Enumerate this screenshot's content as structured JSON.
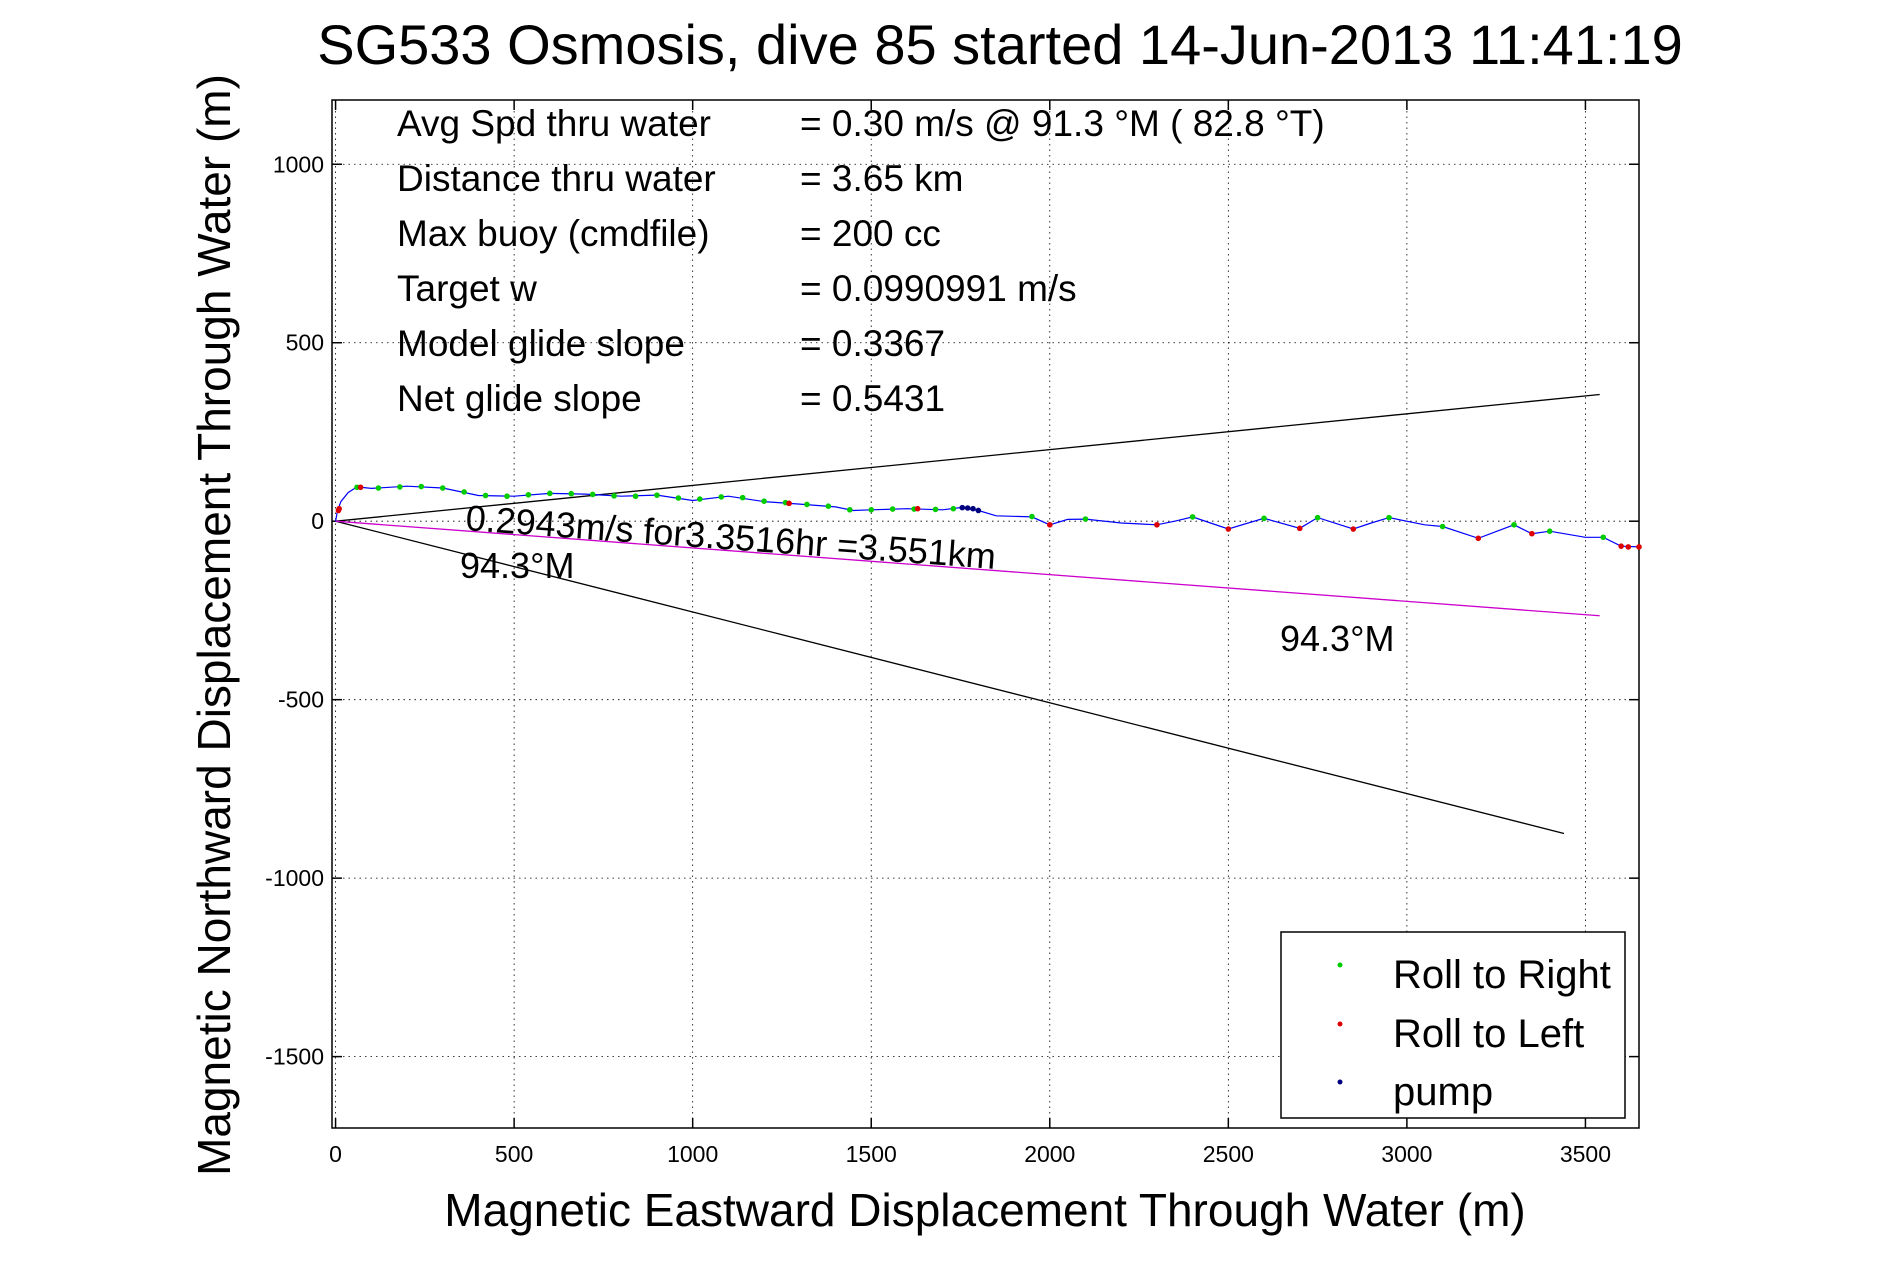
{
  "chart_data": {
    "type": "scatter",
    "title": "SG533 Osmosis, dive 85 started 14-Jun-2013 11:41:19",
    "xlabel": "Magnetic Eastward Displacement Through Water (m)",
    "ylabel": "Magnetic Northward Displacement Through Water (m)",
    "xlim": [
      -10,
      3650
    ],
    "ylim": [
      -1700,
      1180
    ],
    "xticks": [
      0,
      500,
      1000,
      1500,
      2000,
      2500,
      3000,
      3500
    ],
    "yticks": [
      -1500,
      -1000,
      -500,
      0,
      500,
      1000
    ],
    "grid": true,
    "legend_position": "bottom-right",
    "info_lines": [
      {
        "label": "Avg Spd thru water",
        "value": "=  0.30 m/s @  91.3 °M ( 82.8 °T)"
      },
      {
        "label": "Distance thru water",
        "value": "=  3.65 km"
      },
      {
        "label": "Max buoy (cmdfile)",
        "value": "= 200 cc"
      },
      {
        "label": "Target w",
        "value": "= 0.0990991 m/s"
      },
      {
        "label": "Model glide slope",
        "value": "= 0.3367"
      },
      {
        "label": "Net glide slope",
        "value": "= 0.5431"
      }
    ],
    "annotations": {
      "speed_note": "0.2943m/s for3.3516hr =3.551km",
      "heading_near": "94.3°M",
      "heading_far": "94.3°M"
    },
    "legend": [
      {
        "label": "Roll to Right",
        "color": "#00cc00"
      },
      {
        "label": "Roll to Left",
        "color": "#dd0000"
      },
      {
        "label": "pump",
        "color": "#000080"
      }
    ],
    "reference_lines": [
      {
        "kind": "cone-upper",
        "color": "#000000",
        "x": [
          0,
          3540
        ],
        "y": [
          0,
          355
        ]
      },
      {
        "kind": "cone-lower",
        "color": "#000000",
        "x": [
          0,
          3440
        ],
        "y": [
          0,
          -875
        ]
      },
      {
        "kind": "heading",
        "color": "#cc00cc",
        "x": [
          0,
          3540
        ],
        "y": [
          0,
          -265
        ]
      }
    ],
    "track": {
      "color": "#0000ff",
      "points": [
        [
          0,
          0
        ],
        [
          5,
          28
        ],
        [
          15,
          55
        ],
        [
          35,
          80
        ],
        [
          60,
          96
        ],
        [
          100,
          92
        ],
        [
          200,
          98
        ],
        [
          300,
          93
        ],
        [
          400,
          72
        ],
        [
          500,
          70
        ],
        [
          600,
          78
        ],
        [
          700,
          76
        ],
        [
          800,
          70
        ],
        [
          900,
          73
        ],
        [
          1000,
          58
        ],
        [
          1100,
          70
        ],
        [
          1200,
          55
        ],
        [
          1300,
          48
        ],
        [
          1400,
          40
        ],
        [
          1450,
          30
        ],
        [
          1500,
          32
        ],
        [
          1600,
          35
        ],
        [
          1700,
          32
        ],
        [
          1750,
          38
        ],
        [
          1800,
          30
        ],
        [
          1850,
          15
        ],
        [
          1950,
          12
        ],
        [
          2000,
          -10
        ],
        [
          2050,
          5
        ],
        [
          2100,
          6
        ],
        [
          2200,
          -5
        ],
        [
          2300,
          -10
        ],
        [
          2350,
          0
        ],
        [
          2400,
          12
        ],
        [
          2450,
          -5
        ],
        [
          2500,
          -22
        ],
        [
          2600,
          8
        ],
        [
          2700,
          -20
        ],
        [
          2750,
          10
        ],
        [
          2850,
          -22
        ],
        [
          2900,
          -5
        ],
        [
          2950,
          10
        ],
        [
          3050,
          -10
        ],
        [
          3100,
          -15
        ],
        [
          3200,
          -48
        ],
        [
          3300,
          -10
        ],
        [
          3350,
          -35
        ],
        [
          3400,
          -28
        ],
        [
          3500,
          -45
        ],
        [
          3550,
          -45
        ],
        [
          3600,
          -70
        ],
        [
          3650,
          -72
        ]
      ]
    },
    "roll_right_points": [
      [
        60,
        95
      ],
      [
        120,
        93
      ],
      [
        180,
        96
      ],
      [
        240,
        97
      ],
      [
        300,
        93
      ],
      [
        360,
        82
      ],
      [
        420,
        72
      ],
      [
        480,
        70
      ],
      [
        540,
        74
      ],
      [
        600,
        78
      ],
      [
        660,
        77
      ],
      [
        720,
        75
      ],
      [
        780,
        71
      ],
      [
        840,
        70
      ],
      [
        900,
        73
      ],
      [
        960,
        65
      ],
      [
        1020,
        62
      ],
      [
        1080,
        68
      ],
      [
        1140,
        66
      ],
      [
        1200,
        56
      ],
      [
        1260,
        52
      ],
      [
        1320,
        47
      ],
      [
        1380,
        42
      ],
      [
        1440,
        32
      ],
      [
        1500,
        32
      ],
      [
        1560,
        34
      ],
      [
        1620,
        34
      ],
      [
        1680,
        33
      ],
      [
        1730,
        35
      ],
      [
        1950,
        13
      ],
      [
        2100,
        6
      ],
      [
        2400,
        12
      ],
      [
        2600,
        8
      ],
      [
        2750,
        10
      ],
      [
        2950,
        10
      ],
      [
        3100,
        -15
      ],
      [
        3300,
        -10
      ],
      [
        3400,
        -28
      ],
      [
        3550,
        -45
      ]
    ],
    "roll_left_points": [
      [
        8,
        30
      ],
      [
        10,
        35
      ],
      [
        70,
        95
      ],
      [
        1270,
        50
      ],
      [
        1630,
        35
      ],
      [
        2000,
        -10
      ],
      [
        2300,
        -10
      ],
      [
        2500,
        -22
      ],
      [
        2700,
        -20
      ],
      [
        2850,
        -22
      ],
      [
        3200,
        -48
      ],
      [
        3350,
        -35
      ],
      [
        3600,
        -70
      ],
      [
        3620,
        -72
      ],
      [
        3650,
        -72
      ]
    ],
    "pump_points": [
      [
        1755,
        38
      ],
      [
        1770,
        37
      ],
      [
        1785,
        35
      ],
      [
        1800,
        30
      ]
    ]
  }
}
